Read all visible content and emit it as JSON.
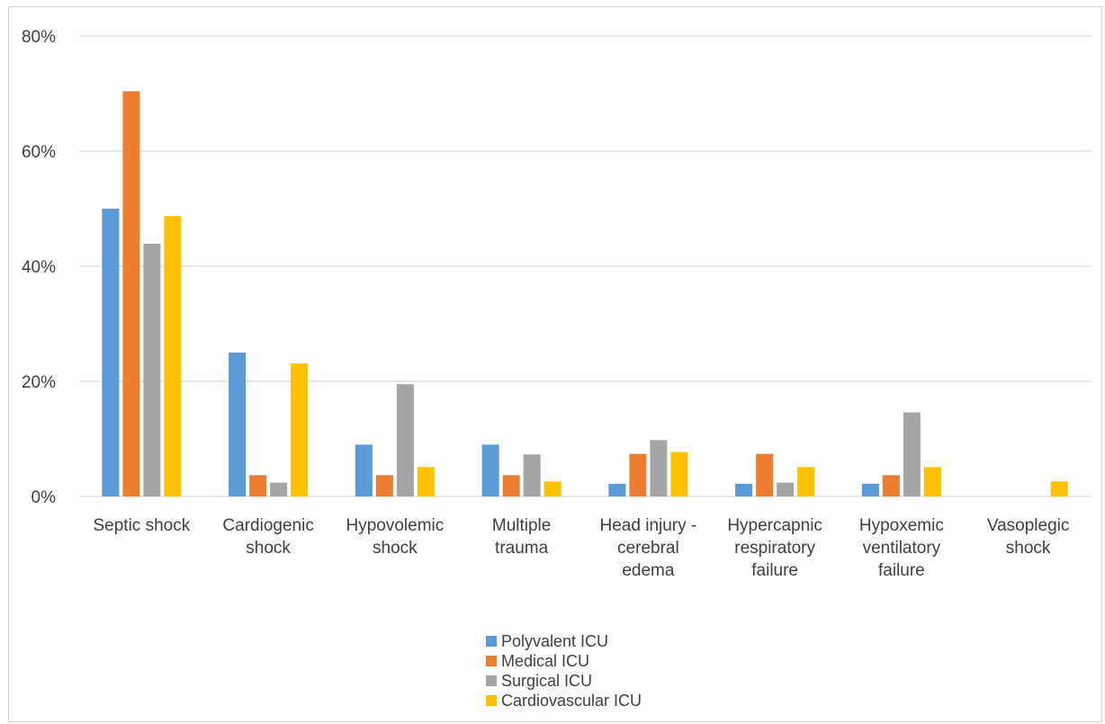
{
  "chart_data": {
    "type": "bar",
    "categories": [
      [
        "Septic shock"
      ],
      [
        "Cardiogenic",
        "shock"
      ],
      [
        "Hypovolemic",
        "shock"
      ],
      [
        "Multiple",
        "trauma"
      ],
      [
        "Head injury -",
        "cerebral",
        "edema"
      ],
      [
        "Hypercapnic",
        "respiratory",
        "failure"
      ],
      [
        "Hypoxemic",
        "ventilatory",
        "failure"
      ],
      [
        "Vasoplegic",
        "shock"
      ]
    ],
    "series": [
      {
        "name": "Polyvalent ICU",
        "color": "#5b9bd5",
        "values": [
          50.0,
          25.0,
          9.0,
          9.0,
          2.2,
          2.2,
          2.2,
          0
        ]
      },
      {
        "name": "Medical ICU",
        "color": "#ed7d31",
        "values": [
          70.4,
          3.7,
          3.7,
          3.7,
          7.4,
          7.4,
          3.7,
          0
        ]
      },
      {
        "name": "Surgical ICU",
        "color": "#a5a5a5",
        "values": [
          43.9,
          2.4,
          19.5,
          7.3,
          9.8,
          2.4,
          14.6,
          0
        ]
      },
      {
        "name": "Cardiovascular ICU",
        "color": "#ffc000",
        "values": [
          48.7,
          23.1,
          5.1,
          2.6,
          7.7,
          5.1,
          5.1,
          2.6
        ]
      }
    ],
    "yticks": [
      "0%",
      "20%",
      "40%",
      "60%",
      "80%"
    ],
    "ylim": [
      0,
      80
    ],
    "grid": true,
    "legend_position": "bottom"
  }
}
